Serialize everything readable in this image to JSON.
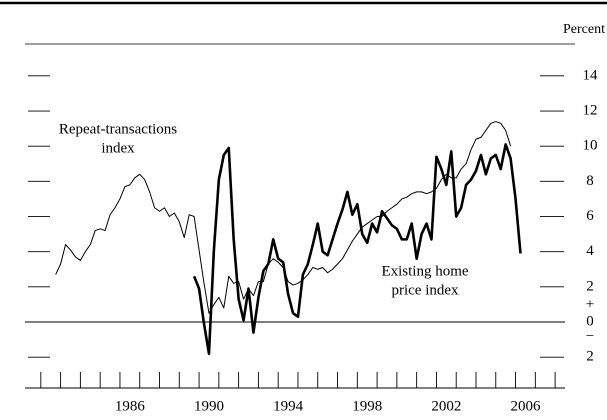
{
  "chart_data": {
    "type": "line",
    "axis_label": "Percent",
    "annotations": [
      [
        "Repeat-transactions",
        "index"
      ],
      [
        "Existing home",
        "price index"
      ]
    ],
    "sign_labels": [
      "+",
      "−"
    ],
    "zero_line": true,
    "xlim": [
      1981.2,
      2008.5
    ],
    "xticks": [
      {
        "value": 1986.5,
        "label": "1986"
      },
      {
        "value": 1990.5,
        "label": "1990"
      },
      {
        "value": 1994.5,
        "label": "1994"
      },
      {
        "value": 1998.5,
        "label": "1998"
      },
      {
        "value": 2002.5,
        "label": "2002"
      },
      {
        "value": 2006.5,
        "label": "2006"
      }
    ],
    "xminor": [
      1982,
      1983,
      1984,
      1985,
      1986,
      1987,
      1988,
      1989,
      1990,
      1991,
      1992,
      1993,
      1994,
      1995,
      1996,
      1997,
      1998,
      1999,
      2000,
      2001,
      2002,
      2003,
      2004,
      2005,
      2006,
      2007,
      2008
    ],
    "ylim": [
      -2.9,
      15.3
    ],
    "yticks": [
      {
        "value": -2,
        "label": "2"
      },
      0,
      2,
      4,
      6,
      8,
      10,
      12,
      14
    ],
    "series": [
      {
        "name": "Repeat-transactions index",
        "color": "#000000",
        "width": 1,
        "x": [
          1982.75,
          1983,
          1983.25,
          1983.5,
          1983.75,
          1984,
          1984.25,
          1984.5,
          1984.75,
          1985,
          1985.25,
          1985.5,
          1985.75,
          1986,
          1986.25,
          1986.5,
          1986.75,
          1987,
          1987.25,
          1987.5,
          1987.75,
          1988,
          1988.25,
          1988.5,
          1988.75,
          1989,
          1989.25,
          1989.5,
          1989.75,
          1990,
          1990.25,
          1990.5,
          1990.75,
          1991,
          1991.25,
          1991.5,
          1991.75,
          1992,
          1992.25,
          1992.5,
          1992.75,
          1993,
          1993.25,
          1993.5,
          1993.75,
          1994,
          1994.25,
          1994.5,
          1994.75,
          1995,
          1995.25,
          1995.5,
          1995.75,
          1996,
          1996.25,
          1996.5,
          1996.75,
          1997,
          1997.25,
          1997.5,
          1997.75,
          1998,
          1998.25,
          1998.5,
          1998.75,
          1999,
          1999.25,
          1999.5,
          1999.75,
          2000,
          2000.25,
          2000.5,
          2000.75,
          2001,
          2001.25,
          2001.5,
          2001.75,
          2002,
          2002.25,
          2002.5,
          2002.75,
          2003,
          2003.25,
          2003.5,
          2003.75,
          2004,
          2004.25,
          2004.5,
          2004.75,
          2005,
          2005.25,
          2005.5,
          2005.75
        ],
        "values": [
          2.7,
          3.3,
          4.4,
          4.1,
          3.7,
          3.5,
          4.0,
          4.4,
          5.2,
          5.3,
          5.2,
          6.1,
          6.5,
          7.0,
          7.7,
          7.8,
          8.2,
          8.4,
          8.1,
          7.4,
          6.5,
          6.3,
          6.5,
          6.0,
          6.2,
          5.7,
          4.8,
          6.1,
          6.0,
          4.1,
          2.2,
          0.5,
          1.0,
          1.4,
          0.8,
          2.6,
          2.2,
          2.3,
          1.3,
          1.9,
          1.5,
          2.3,
          2.3,
          3.3,
          3.6,
          3.4,
          3.1,
          2.3,
          2.1,
          2.2,
          2.4,
          2.7,
          3.1,
          3.0,
          3.1,
          2.8,
          3.0,
          3.3,
          3.6,
          4.1,
          4.6,
          5.0,
          5.4,
          5.6,
          5.8,
          6.0,
          6.0,
          6.3,
          6.5,
          6.7,
          7.0,
          7.1,
          7.3,
          7.4,
          7.4,
          7.3,
          7.4,
          7.6,
          8.1,
          8.4,
          8.2,
          8.2,
          8.7,
          9.0,
          9.8,
          10.4,
          10.5,
          10.9,
          11.3,
          11.4,
          11.3,
          10.9,
          10.0
        ]
      },
      {
        "name": "Existing home price index",
        "color": "#000000",
        "width": 2.6,
        "x": [
          1989.75,
          1990,
          1990.25,
          1990.5,
          1990.75,
          1991,
          1991.25,
          1991.5,
          1991.75,
          1992,
          1992.25,
          1992.5,
          1992.75,
          1993,
          1993.25,
          1993.5,
          1993.75,
          1994,
          1994.25,
          1994.5,
          1994.75,
          1995,
          1995.25,
          1995.5,
          1995.75,
          1996,
          1996.25,
          1996.5,
          1996.75,
          1997,
          1997.25,
          1997.5,
          1997.75,
          1998,
          1998.25,
          1998.5,
          1998.75,
          1999,
          1999.25,
          1999.5,
          1999.75,
          2000,
          2000.25,
          2000.5,
          2000.75,
          2001,
          2001.25,
          2001.5,
          2001.75,
          2002,
          2002.25,
          2002.5,
          2002.75,
          2003,
          2003.25,
          2003.5,
          2003.75,
          2004,
          2004.25,
          2004.5,
          2004.75,
          2005,
          2005.25,
          2005.5,
          2005.75,
          2006,
          2006.25
        ],
        "values": [
          2.6,
          1.9,
          -0.1,
          -1.8,
          4.1,
          8.1,
          9.5,
          9.9,
          4.7,
          1.3,
          0.1,
          1.9,
          -0.6,
          1.4,
          2.9,
          3.3,
          4.7,
          3.6,
          3.4,
          1.6,
          0.5,
          0.3,
          2.7,
          3.3,
          4.4,
          5.6,
          4.0,
          3.8,
          4.7,
          5.6,
          6.4,
          7.4,
          6.1,
          6.7,
          5.0,
          4.5,
          5.6,
          5.1,
          6.3,
          5.9,
          5.5,
          5.3,
          4.7,
          4.7,
          5.6,
          3.6,
          5.0,
          5.6,
          4.7,
          9.4,
          8.7,
          7.8,
          9.7,
          6.0,
          6.5,
          7.8,
          8.1,
          8.6,
          9.5,
          8.4,
          9.3,
          9.5,
          8.7,
          10.1,
          9.3,
          7.0,
          3.9
        ]
      }
    ]
  }
}
